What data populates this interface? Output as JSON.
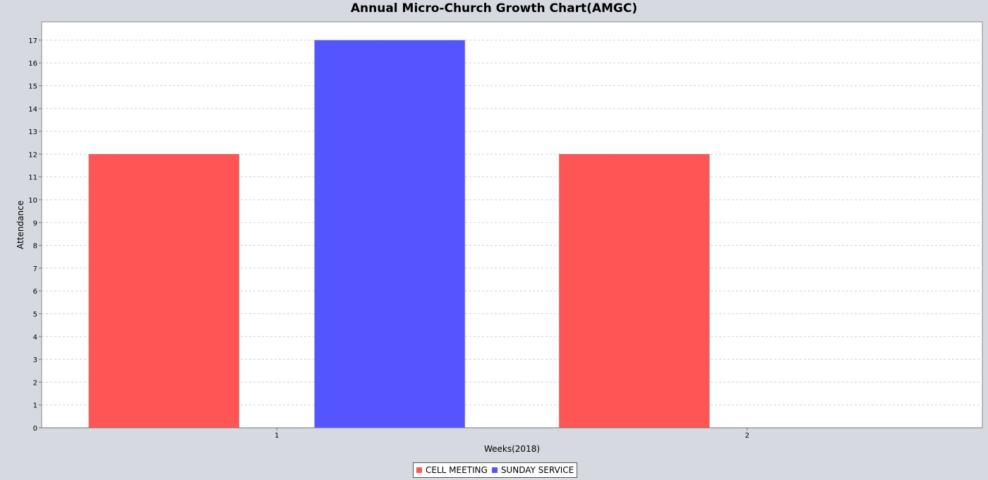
{
  "chart_data": {
    "type": "bar",
    "title": "Annual Micro-Church Growth Chart(AMGC)",
    "xlabel": "Weeks(2018)",
    "ylabel": "Attendance",
    "categories": [
      "1",
      "2"
    ],
    "series": [
      {
        "name": "CELL MEETING",
        "color": "#ff5555",
        "values": [
          12,
          12
        ]
      },
      {
        "name": "SUNDAY SERVICE",
        "color": "#5555ff",
        "values": [
          17,
          0
        ]
      }
    ],
    "ylim": [
      0,
      17.8
    ],
    "yticks": [
      0,
      1,
      2,
      3,
      4,
      5,
      6,
      7,
      8,
      9,
      10,
      11,
      12,
      13,
      14,
      15,
      16,
      17
    ],
    "grid": true,
    "legend_position": "bottom-center"
  }
}
